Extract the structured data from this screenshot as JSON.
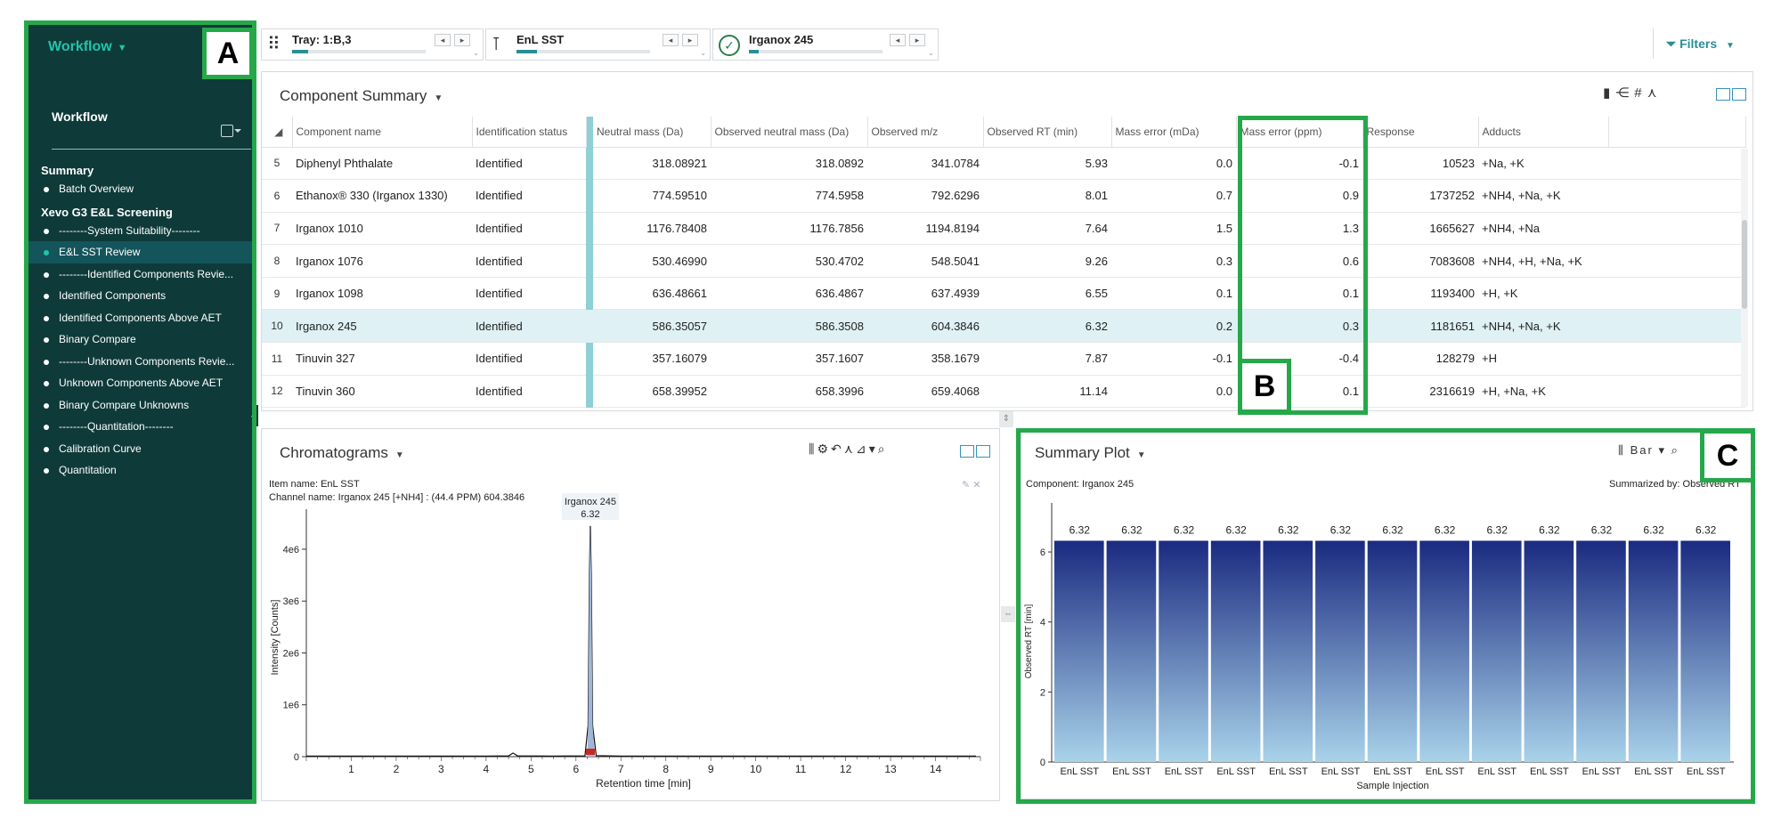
{
  "sidebar": {
    "workflow_toggle": "Workflow",
    "section_title": "Workflow",
    "groups": [
      {
        "title": "Summary",
        "items": [
          {
            "label": "Batch Overview",
            "active": false
          }
        ]
      },
      {
        "title": "Xevo G3 E&L Screening",
        "items": [
          {
            "label": "--------System Suitability--------",
            "active": false
          },
          {
            "label": "E&L SST Review",
            "active": true
          },
          {
            "label": "--------Identified Components Revie...",
            "active": false
          },
          {
            "label": "Identified Components",
            "active": false
          },
          {
            "label": "Identified Components Above AET",
            "active": false
          },
          {
            "label": "Binary Compare",
            "active": false
          },
          {
            "label": "--------Unknown Components Revie...",
            "active": false
          },
          {
            "label": "Unknown Components Above AET",
            "active": false
          },
          {
            "label": "Binary Compare Unknowns",
            "active": false
          },
          {
            "label": "--------Quantitation--------",
            "active": false
          },
          {
            "label": "Calibration Curve",
            "active": false
          },
          {
            "label": "Quantitation",
            "active": false
          }
        ]
      }
    ]
  },
  "callouts": {
    "a": "A",
    "b": "B",
    "c": "C"
  },
  "topbar": {
    "selectors": [
      {
        "label": "Tray: 1:B,3",
        "icon": "tray-icon",
        "progress": 0.12
      },
      {
        "label": "EnL SST",
        "icon": "sample-icon",
        "progress": 0.15
      },
      {
        "label": "Irganox 245",
        "icon": "check-circle-icon",
        "progress": 0.07
      }
    ],
    "filters_label": "Filters"
  },
  "component_summary": {
    "title": "Component Summary",
    "columns": [
      "Component name",
      "Identification status",
      "Neutral mass (Da)",
      "Observed neutral mass (Da)",
      "Observed m/z",
      "Observed RT (min)",
      "Mass error (mDa)",
      "Mass error (ppm)",
      "Response",
      "Adducts"
    ],
    "rows": [
      {
        "n": "5",
        "name": "Diphenyl Phthalate",
        "status": "Identified",
        "neutral": "318.08921",
        "obs_neutral": "318.0892",
        "mz": "341.0784",
        "rt": "5.93",
        "mda": "0.0",
        "ppm": "-0.1",
        "response": "10523",
        "adducts": "+Na, +K"
      },
      {
        "n": "6",
        "name": "Ethanox® 330 (Irganox 1330)",
        "status": "Identified",
        "neutral": "774.59510",
        "obs_neutral": "774.5958",
        "mz": "792.6296",
        "rt": "8.01",
        "mda": "0.7",
        "ppm": "0.9",
        "response": "1737252",
        "adducts": "+NH4, +Na, +K"
      },
      {
        "n": "7",
        "name": "Irganox 1010",
        "status": "Identified",
        "neutral": "1176.78408",
        "obs_neutral": "1176.7856",
        "mz": "1194.8194",
        "rt": "7.64",
        "mda": "1.5",
        "ppm": "1.3",
        "response": "1665627",
        "adducts": "+NH4, +Na"
      },
      {
        "n": "8",
        "name": "Irganox 1076",
        "status": "Identified",
        "neutral": "530.46990",
        "obs_neutral": "530.4702",
        "mz": "548.5041",
        "rt": "9.26",
        "mda": "0.3",
        "ppm": "0.6",
        "response": "7083608",
        "adducts": "+NH4, +H, +Na, +K"
      },
      {
        "n": "9",
        "name": "Irganox 1098",
        "status": "Identified",
        "neutral": "636.48661",
        "obs_neutral": "636.4867",
        "mz": "637.4939",
        "rt": "6.55",
        "mda": "0.1",
        "ppm": "0.1",
        "response": "1193400",
        "adducts": "+H, +K"
      },
      {
        "n": "10",
        "name": "Irganox 245",
        "status": "Identified",
        "neutral": "586.35057",
        "obs_neutral": "586.3508",
        "mz": "604.3846",
        "rt": "6.32",
        "mda": "0.2",
        "ppm": "0.3",
        "response": "1181651",
        "adducts": "+NH4, +Na, +K",
        "selected": true
      },
      {
        "n": "11",
        "name": "Tinuvin 327",
        "status": "Identified",
        "neutral": "357.16079",
        "obs_neutral": "357.1607",
        "mz": "358.1679",
        "rt": "7.87",
        "mda": "-0.1",
        "ppm": "-0.4",
        "response": "128279",
        "adducts": "+H"
      },
      {
        "n": "12",
        "name": "Tinuvin 360",
        "status": "Identified",
        "neutral": "658.39952",
        "obs_neutral": "658.3996",
        "mz": "659.4068",
        "rt": "11.14",
        "mda": "0.0",
        "ppm": "0.1",
        "response": "2316619",
        "adducts": "+H, +Na, +K"
      }
    ]
  },
  "chromatograms": {
    "title": "Chromatograms",
    "item_name": "Item name: EnL SST",
    "channel_name": "Channel name: Irganox 245 [+NH4] : (44.4 PPM) 604.3846"
  },
  "summary_plot": {
    "title": "Summary Plot",
    "chart_type_label": "Bar",
    "component": "Component: Irganox 245",
    "summarized_by": "Summarized by: Observed RT"
  },
  "chart_data": [
    {
      "type": "line",
      "xlabel": "Retention time [min]",
      "ylabel": "Intensity [Counts]",
      "xlim": [
        0,
        15
      ],
      "ylim": [
        0,
        4600000
      ],
      "x_ticks": [
        1,
        2,
        3,
        4,
        5,
        6,
        7,
        8,
        9,
        10,
        11,
        12,
        13,
        14
      ],
      "y_ticks": [
        {
          "v": 0,
          "label": "0"
        },
        {
          "v": 1000000,
          "label": "1e6"
        },
        {
          "v": 2000000,
          "label": "2e6"
        },
        {
          "v": 3000000,
          "label": "3e6"
        },
        {
          "v": 4000000,
          "label": "4e6"
        }
      ],
      "peak_label": {
        "name": "Irganox 245",
        "rt": "6.32"
      },
      "x": [
        0,
        1,
        2,
        3,
        4,
        4.5,
        4.6,
        4.7,
        5.5,
        6.2,
        6.27,
        6.3,
        6.32,
        6.34,
        6.37,
        6.45,
        7,
        8,
        10,
        12,
        14.9
      ],
      "y": [
        10000,
        12000,
        12000,
        11000,
        12000,
        15000,
        70000,
        15000,
        12000,
        15000,
        600000,
        3500000,
        4450000,
        3500000,
        600000,
        20000,
        12000,
        12000,
        12000,
        12000,
        12000
      ]
    },
    {
      "type": "bar",
      "xlabel": "Sample Injection",
      "ylabel": "Observed RT [min]",
      "ylim": [
        0,
        7.4
      ],
      "y_ticks": [
        0,
        2,
        4,
        6
      ],
      "categories": [
        "EnL SST",
        "EnL SST",
        "EnL SST",
        "EnL SST",
        "EnL SST",
        "EnL SST",
        "EnL SST",
        "EnL SST",
        "EnL SST",
        "EnL SST",
        "EnL SST",
        "EnL SST",
        "EnL SST"
      ],
      "values": [
        6.32,
        6.32,
        6.32,
        6.32,
        6.32,
        6.32,
        6.32,
        6.32,
        6.32,
        6.32,
        6.32,
        6.32,
        6.32
      ],
      "value_labels": [
        "6.32",
        "6.32",
        "6.32",
        "6.32",
        "6.32",
        "6.32",
        "6.32",
        "6.32",
        "6.32",
        "6.32",
        "6.32",
        "6.32",
        "6.32"
      ]
    }
  ],
  "colors": {
    "accent": "#2a8e96",
    "sidebar_bg": "#0f3a3a",
    "highlight": "#26a84a",
    "bar_top": "#1a2a80",
    "bar_bottom": "#a9d3ea"
  }
}
